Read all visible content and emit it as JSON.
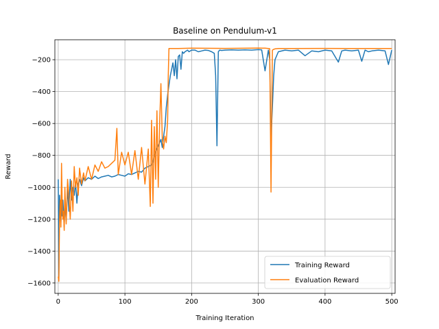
{
  "chart_data": {
    "type": "line",
    "title": "Baseline on Pendulum-v1",
    "xlabel": "Training Iteration",
    "ylabel": "Reward",
    "xlim": [
      -5,
      505
    ],
    "ylim": [
      -1665,
      -75
    ],
    "xticks": [
      0,
      100,
      200,
      300,
      400,
      500
    ],
    "yticks": [
      -1600,
      -1400,
      -1200,
      -1000,
      -800,
      -600,
      -400,
      -200
    ],
    "grid": true,
    "legend_position": "bottom-right",
    "series": [
      {
        "name": "Training Reward",
        "color": "#1f77b4",
        "x": [
          0,
          1,
          2,
          3,
          4,
          5,
          6,
          7,
          8,
          9,
          10,
          12,
          14,
          16,
          18,
          20,
          22,
          24,
          26,
          28,
          30,
          32,
          35,
          38,
          40,
          45,
          50,
          55,
          60,
          65,
          70,
          75,
          80,
          85,
          90,
          95,
          100,
          105,
          110,
          115,
          120,
          125,
          130,
          135,
          140,
          142,
          144,
          146,
          148,
          150,
          152,
          154,
          156,
          158,
          160,
          162,
          164,
          166,
          168,
          170,
          172,
          174,
          176,
          178,
          180,
          182,
          184,
          186,
          188,
          190,
          192,
          194,
          196,
          198,
          200,
          205,
          210,
          215,
          220,
          225,
          230,
          234,
          236,
          238,
          240,
          242,
          245,
          250,
          260,
          270,
          280,
          290,
          300,
          305,
          310,
          315,
          317,
          319,
          321,
          323,
          325,
          330,
          340,
          350,
          360,
          370,
          380,
          390,
          400,
          410,
          420,
          425,
          430,
          440,
          450,
          455,
          460,
          465,
          470,
          480,
          490,
          495,
          500
        ],
        "y": [
          -950,
          -1580,
          -1050,
          -1150,
          -1220,
          -1100,
          -1180,
          -1080,
          -1150,
          -1250,
          -1100,
          -1210,
          -1000,
          -1150,
          -950,
          -1080,
          -1000,
          -1050,
          -970,
          -1100,
          -980,
          -950,
          -990,
          -940,
          -960,
          -940,
          -950,
          -930,
          -945,
          -935,
          -930,
          -925,
          -935,
          -930,
          -920,
          -925,
          -930,
          -915,
          -920,
          -910,
          -900,
          -905,
          -880,
          -870,
          -860,
          -840,
          -800,
          -780,
          -760,
          -740,
          -720,
          -700,
          -750,
          -680,
          -620,
          -500,
          -420,
          -360,
          -300,
          -260,
          -220,
          -300,
          -200,
          -320,
          -180,
          -170,
          -260,
          -150,
          -160,
          -150,
          -145,
          -140,
          -150,
          -145,
          -140,
          -140,
          -150,
          -145,
          -140,
          -142,
          -150,
          -160,
          -300,
          -740,
          -150,
          -140,
          -142,
          -140,
          -138,
          -140,
          -138,
          -140,
          -137,
          -138,
          -270,
          -140,
          -200,
          -690,
          -500,
          -300,
          -200,
          -150,
          -140,
          -145,
          -140,
          -175,
          -145,
          -150,
          -140,
          -145,
          -215,
          -145,
          -140,
          -145,
          -140,
          -210,
          -140,
          -150,
          -145,
          -140,
          -145,
          -230,
          -140
        ],
        "width": 1.5
      },
      {
        "name": "Evaluation Reward",
        "color": "#ff7f0e",
        "x": [
          0,
          1,
          2,
          3,
          4,
          5,
          6,
          7,
          8,
          9,
          10,
          12,
          14,
          16,
          18,
          20,
          22,
          24,
          26,
          28,
          30,
          32,
          35,
          38,
          40,
          45,
          50,
          55,
          60,
          65,
          70,
          75,
          80,
          85,
          88,
          90,
          95,
          100,
          105,
          110,
          115,
          120,
          125,
          130,
          135,
          138,
          140,
          142,
          144,
          146,
          148,
          150,
          152,
          154,
          156,
          158,
          160,
          162,
          164,
          165,
          166,
          170,
          180,
          200,
          250,
          300,
          310,
          315,
          317,
          319,
          321,
          323,
          325,
          330,
          350,
          400,
          450,
          500
        ],
        "y": [
          -1560,
          -1590,
          -1200,
          -1080,
          -1250,
          -850,
          -1100,
          -1200,
          -1150,
          -1270,
          -1000,
          -1230,
          -950,
          -1050,
          -1200,
          -960,
          -1150,
          -870,
          -1000,
          -940,
          -1050,
          -880,
          -980,
          -910,
          -960,
          -870,
          -950,
          -860,
          -900,
          -840,
          -880,
          -870,
          -850,
          -830,
          -630,
          -920,
          -780,
          -860,
          -780,
          -920,
          -770,
          -950,
          -750,
          -980,
          -760,
          -1120,
          -580,
          -1100,
          -620,
          -950,
          -520,
          -1000,
          -600,
          -350,
          -700,
          -760,
          -680,
          -720,
          -580,
          -300,
          -130,
          -130,
          -130,
          -128,
          -129,
          -127,
          -128,
          -130,
          -131,
          -1030,
          -140,
          -135,
          -132,
          -130,
          -130,
          -129,
          -130,
          -130
        ],
        "width": 1.5
      }
    ]
  }
}
